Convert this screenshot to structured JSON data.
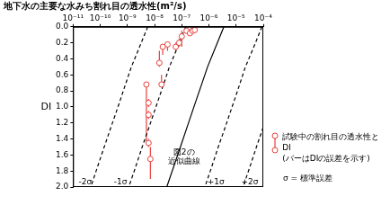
{
  "chart_data": {
    "type": "scatter",
    "title": "地下水の主要な水みち割れ目の透水性(m²/s)",
    "y_label": "DI",
    "log": "x",
    "grid": false,
    "legend": "right",
    "xlim": [
      1e-11,
      0.0001
    ],
    "xticks": [
      {
        "value": 1e-11,
        "label": "10⁻¹¹"
      },
      {
        "value": 1e-10,
        "label": "10⁻¹⁰"
      },
      {
        "value": 1e-09,
        "label": "10⁻⁹"
      },
      {
        "value": 1e-08,
        "label": "10⁻⁸"
      },
      {
        "value": 1e-07,
        "label": "10⁻⁷"
      },
      {
        "value": 1e-06,
        "label": "10⁻⁶"
      },
      {
        "value": 1e-05,
        "label": "10⁻⁵"
      },
      {
        "value": 0.0001,
        "label": "10⁻⁴"
      }
    ],
    "ylim": [
      0,
      2
    ],
    "yticks": [
      {
        "value": 0,
        "label": "0.0"
      },
      0.2,
      0.4,
      0.6,
      0.8,
      {
        "value": 1,
        "label": "1.0"
      },
      1.2,
      1.4,
      1.6,
      1.8,
      {
        "value": 2,
        "label": "2.0"
      }
    ],
    "series": [
      {
        "name": "試験中の割れ目の透水性とDI",
        "color": "#e8413c",
        "marker": "circle",
        "x": [
          2e-08,
          3e-08,
          1.5e-08,
          1.8e-08,
          5e-09,
          6e-09,
          6e-09,
          6e-09,
          7e-09,
          6e-08,
          1e-07,
          1.5e-07,
          2e-07,
          2.5e-07,
          3e-07,
          8e-08
        ],
        "values": [
          0.25,
          0.22,
          0.45,
          0.72,
          0.72,
          0.95,
          1.1,
          1.45,
          1.65,
          0.25,
          0.12,
          0.05,
          0.08,
          0.05,
          0.04,
          0.2
        ],
        "di_error": [
          [
            0.22,
            0.35
          ],
          [
            0.2,
            0.3
          ],
          [
            0.3,
            0.5
          ],
          [
            0.6,
            0.75
          ],
          [
            0.7,
            1.45
          ],
          [
            0.9,
            1.0
          ],
          [
            1.05,
            1.15
          ],
          [
            1.4,
            1.5
          ],
          [
            1.5,
            1.9
          ],
          [
            0.2,
            0.3
          ],
          [
            0.05,
            0.25
          ],
          [
            0.02,
            0.08
          ],
          [
            0.05,
            0.1
          ],
          [
            0.03,
            0.08
          ],
          [
            0.02,
            0.06
          ],
          [
            0.15,
            0.25
          ]
        ]
      },
      {
        "type": "line",
        "color": "#000000",
        "line_style": "solid",
        "x": [
          3.55e-06,
          1.78e-06,
          8.9e-07,
          5e-07,
          2.8e-07,
          1.58e-07,
          8.9e-08,
          5e-08,
          2.8e-08
        ],
        "values": [
          0,
          0.25,
          0.5,
          0.75,
          1.0,
          1.25,
          1.5,
          1.75,
          2.0
        ]
      },
      {
        "type": "line",
        "color": "#000000",
        "line_style": "dashed",
        "x": [
          8.9e-05,
          4.5e-05,
          2.2e-05,
          1.26e-05,
          7.1e-06,
          4e-06,
          2.2e-06,
          1.26e-06,
          7.1e-07
        ],
        "values": [
          0,
          0.25,
          0.5,
          0.75,
          1.0,
          1.25,
          1.5,
          1.75,
          2.0
        ]
      },
      {
        "type": "line",
        "color": "#000000",
        "line_style": "dashed",
        "x": [
          0.0022,
          0.0011,
          0.00056,
          0.00032,
          0.00018,
          0.0001,
          5.6e-05,
          3.2e-05,
          1.8e-05
        ],
        "values": [
          0,
          0.25,
          0.5,
          0.75,
          1.0,
          1.25,
          1.5,
          1.75,
          2.0
        ]
      },
      {
        "type": "line",
        "color": "#000000",
        "line_style": "dashed",
        "x": [
          1.4e-07,
          7.1e-08,
          3.5e-08,
          2e-08,
          1.12e-08,
          6.3e-09,
          3.5e-09,
          2e-09,
          1.12e-09
        ],
        "values": [
          0,
          0.25,
          0.5,
          0.75,
          1.0,
          1.25,
          1.5,
          1.75,
          2.0
        ]
      },
      {
        "type": "line",
        "color": "#000000",
        "line_style": "dashed",
        "x": [
          5.6e-09,
          2.8e-09,
          1.4e-09,
          7.9e-10,
          4.5e-10,
          2.5e-10,
          1.4e-10,
          7.9e-11,
          4.5e-11
        ],
        "values": [
          0,
          0.25,
          0.5,
          0.75,
          1.0,
          1.25,
          1.5,
          1.75,
          2.0
        ]
      }
    ],
    "legend_notes": [
      "(バーはDIの誤差を示す)",
      "σ = 標準誤差"
    ],
    "annotations": [
      {
        "text": "-2σ",
        "x": 2.8e-11,
        "y": 1.94
      },
      {
        "text": "-1σ",
        "x": 5.6e-10,
        "y": 1.94
      },
      {
        "text": "+1σ",
        "x": 1.8e-06,
        "y": 1.94
      },
      {
        "text": "+2σ",
        "x": 3.2e-05,
        "y": 1.94
      },
      {
        "text": "図2の",
        "x": 1.2e-07,
        "y": 1.57
      },
      {
        "text": "近似曲線",
        "x": 1.2e-07,
        "y": 1.68
      }
    ]
  }
}
